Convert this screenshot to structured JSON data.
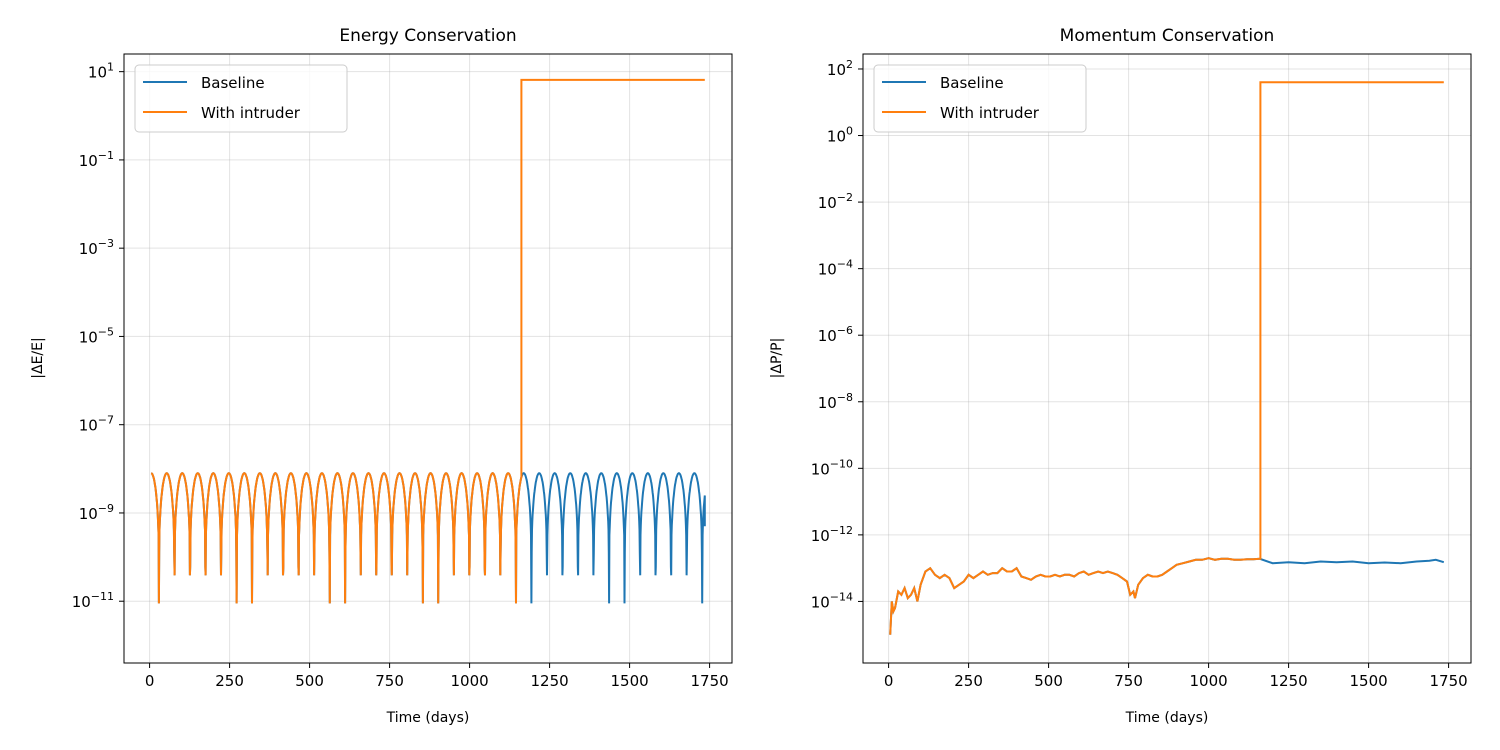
{
  "chart_data": [
    {
      "type": "line",
      "title": "Energy Conservation",
      "xlabel": "Time (days)",
      "ylabel": "|ΔE/E|",
      "xlim": [
        -80,
        1820
      ],
      "ylim_log10": [
        -12.4,
        1.4
      ],
      "yscale": "log",
      "grid": true,
      "legend_position": "top-left",
      "x_ticks": [
        0,
        250,
        500,
        750,
        1000,
        1250,
        1500,
        1750
      ],
      "x_tick_labels": [
        "0",
        "250",
        "500",
        "750",
        "1000",
        "1250",
        "1500",
        "1750"
      ],
      "y_tick_exponents": [
        -11,
        -9,
        -7,
        -5,
        -3,
        -1,
        1
      ],
      "y_tick_base": "10",
      "y_tick_exps": [
        "−11",
        "−9",
        "−7",
        "−5",
        "−3",
        "−1",
        "1"
      ],
      "legend": [
        "Baseline",
        "With intruder"
      ],
      "series": [
        {
          "name": "Baseline",
          "color": "#1f77b4",
          "pattern": "oscillating",
          "x_range": [
            5,
            1735
          ],
          "period_days": 48.5,
          "phase_offset_days": 48.5,
          "peak_log10": -8.1,
          "trough_log10": -10.5,
          "end_value_log10": -9.3
        },
        {
          "name": "With intruder",
          "color": "#ff7f0e",
          "pattern": "oscillating_then_jump",
          "x_range": [
            5,
            1735
          ],
          "period_days": 48.5,
          "phase_offset_days": 48.5,
          "peak_log10": -8.1,
          "trough_log10": -10.5,
          "jump_x": 1162,
          "jump_value": 6.5
        }
      ]
    },
    {
      "type": "line",
      "title": "Momentum Conservation",
      "xlabel": "Time (days)",
      "ylabel": "|ΔP/P|",
      "xlim": [
        -80,
        1820
      ],
      "ylim_log10": [
        -15.85,
        2.45
      ],
      "yscale": "log",
      "grid": true,
      "legend_position": "top-left",
      "x_ticks": [
        0,
        250,
        500,
        750,
        1000,
        1250,
        1500,
        1750
      ],
      "x_tick_labels": [
        "0",
        "250",
        "500",
        "750",
        "1000",
        "1250",
        "1500",
        "1750"
      ],
      "y_tick_exponents": [
        -14,
        -12,
        -10,
        -8,
        -6,
        -4,
        -2,
        0,
        2
      ],
      "y_tick_base": "10",
      "y_tick_exps": [
        "−14",
        "−12",
        "−10",
        "−8",
        "−6",
        "−4",
        "−2",
        "0",
        "2"
      ],
      "legend": [
        "Baseline",
        "With intruder"
      ],
      "series": [
        {
          "name": "Baseline",
          "color": "#1f77b4",
          "pattern": "random_walk",
          "x": [
            5,
            10,
            15,
            20,
            30,
            40,
            50,
            60,
            70,
            80,
            90,
            100,
            115,
            130,
            145,
            160,
            175,
            190,
            205,
            220,
            235,
            250,
            265,
            280,
            295,
            310,
            325,
            340,
            355,
            370,
            385,
            400,
            415,
            430,
            445,
            460,
            475,
            490,
            505,
            520,
            535,
            550,
            565,
            580,
            595,
            610,
            625,
            640,
            655,
            670,
            685,
            700,
            715,
            730,
            745,
            755,
            765,
            770,
            780,
            795,
            810,
            825,
            840,
            855,
            870,
            885,
            900,
            920,
            940,
            960,
            980,
            1000,
            1020,
            1040,
            1060,
            1080,
            1100,
            1120,
            1140,
            1160,
            1200,
            1250,
            1300,
            1350,
            1400,
            1450,
            1500,
            1550,
            1600,
            1650,
            1690,
            1710,
            1735
          ],
          "y_log10": [
            -15.0,
            -14.0,
            -14.3,
            -14.2,
            -13.7,
            -13.8,
            -13.6,
            -13.9,
            -13.8,
            -13.6,
            -14.0,
            -13.5,
            -13.1,
            -13.0,
            -13.2,
            -13.3,
            -13.2,
            -13.3,
            -13.6,
            -13.5,
            -13.4,
            -13.2,
            -13.3,
            -13.2,
            -13.1,
            -13.2,
            -13.15,
            -13.15,
            -13.0,
            -13.1,
            -13.1,
            -13.0,
            -13.25,
            -13.3,
            -13.35,
            -13.25,
            -13.2,
            -13.25,
            -13.25,
            -13.2,
            -13.25,
            -13.2,
            -13.2,
            -13.25,
            -13.15,
            -13.1,
            -13.2,
            -13.15,
            -13.1,
            -13.15,
            -13.1,
            -13.15,
            -13.2,
            -13.3,
            -13.4,
            -13.8,
            -13.7,
            -13.9,
            -13.5,
            -13.3,
            -13.2,
            -13.25,
            -13.25,
            -13.2,
            -13.1,
            -13.0,
            -12.9,
            -12.85,
            -12.8,
            -12.75,
            -12.75,
            -12.7,
            -12.75,
            -12.72,
            -12.72,
            -12.75,
            -12.75,
            -12.73,
            -12.73,
            -12.72,
            -12.85,
            -12.82,
            -12.85,
            -12.8,
            -12.82,
            -12.8,
            -12.85,
            -12.83,
            -12.85,
            -12.8,
            -12.78,
            -12.75,
            -12.82
          ]
        },
        {
          "name": "With intruder",
          "color": "#ff7f0e",
          "pattern": "follows_baseline_then_jump",
          "jump_x": 1162,
          "jump_value_log10": 1.6
        }
      ]
    }
  ]
}
